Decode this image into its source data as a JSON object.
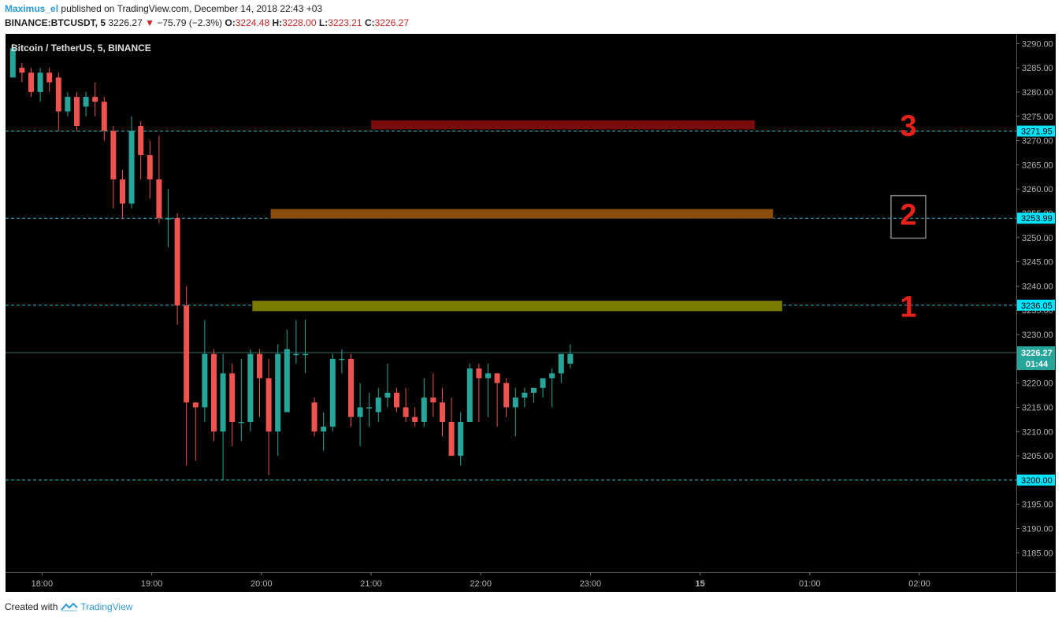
{
  "header": {
    "author": "Maximus_el",
    "published": "published on TradingView.com, December 14, 2018 22:43 +03",
    "symbol": "BINANCE:BTCUSDT, 5",
    "last": "3226.27",
    "change": "−75.79 (−2.3%)",
    "o_label": "O:",
    "o_value": "3224.48",
    "h_label": "H:",
    "h_value": "3228.00",
    "l_label": "L:",
    "l_value": "3223.21",
    "c_label": "C:",
    "c_value": "3226.27"
  },
  "footer": {
    "created_with": "Created with",
    "brand": "TradingView"
  },
  "colors": {
    "background": "#000000",
    "up": "#26a69a",
    "down": "#ef5350",
    "dashed_line": "#2ab7ca",
    "zone1": "#7a7a00",
    "zone2": "#8a4d0e",
    "zone3": "#7a0b0b",
    "price_label_bg": "#00e5ff",
    "last_price_bg": "#26a69a",
    "zone_number": "#e8211b"
  },
  "chart_data": {
    "type": "candlestick",
    "title": "Bitcoin / TetherUS, 5, BINANCE",
    "ylim": [
      3181,
      3292
    ],
    "x_time_start": "17:40",
    "x_ticks": [
      {
        "time": "18:00",
        "label": "18:00"
      },
      {
        "time": "19:00",
        "label": "19:00"
      },
      {
        "time": "20:00",
        "label": "20:00"
      },
      {
        "time": "21:00",
        "label": "21:00"
      },
      {
        "time": "22:00",
        "label": "22:00"
      },
      {
        "time": "23:00",
        "label": "23:00"
      },
      {
        "time": "24:00",
        "label": "15"
      },
      {
        "time": "25:00",
        "label": "01:00"
      },
      {
        "time": "26:00",
        "label": "02:00"
      }
    ],
    "y_ticks": [
      3290,
      3285,
      3280,
      3275,
      3270,
      3265,
      3260,
      3255,
      3250,
      3245,
      3240,
      3235,
      3230,
      3225,
      3220,
      3215,
      3210,
      3205,
      3200,
      3195,
      3190,
      3185
    ],
    "candles": [
      [
        3283,
        3289,
        3283,
        3290
      ],
      [
        3285,
        3284,
        3282,
        3286
      ],
      [
        3284,
        3280,
        3279,
        3285
      ],
      [
        3280,
        3284,
        3278,
        3285
      ],
      [
        3284,
        3282,
        3280,
        3285
      ],
      [
        3283,
        3276,
        3272,
        3284
      ],
      [
        3276,
        3279,
        3275,
        3280
      ],
      [
        3279,
        3273,
        3272,
        3280
      ],
      [
        3277,
        3279,
        3275,
        3280
      ],
      [
        3279,
        3278,
        3275,
        3282
      ],
      [
        3278,
        3272,
        3270,
        3279
      ],
      [
        3272,
        3262,
        3256,
        3273
      ],
      [
        3262,
        3257,
        3254,
        3264
      ],
      [
        3257,
        3272,
        3256,
        3275
      ],
      [
        3273,
        3267,
        3262,
        3274
      ],
      [
        3267,
        3262,
        3258,
        3270
      ],
      [
        3262,
        3254,
        3253,
        3271
      ],
      [
        3254,
        3254,
        3248,
        3260
      ],
      [
        3254,
        3236,
        3232,
        3255
      ],
      [
        3236,
        3216,
        3203,
        3240
      ],
      [
        3216,
        3215,
        3204,
        3216
      ],
      [
        3215,
        3226,
        3212,
        3233
      ],
      [
        3226,
        3210,
        3208,
        3227
      ],
      [
        3210,
        3222,
        3200,
        3226
      ],
      [
        3222,
        3212,
        3207,
        3224
      ],
      [
        3212,
        3212,
        3208,
        3225
      ],
      [
        3212,
        3226,
        3210,
        3227
      ],
      [
        3226,
        3221,
        3213,
        3227
      ],
      [
        3221,
        3210,
        3201,
        3225
      ],
      [
        3210,
        3226,
        3205,
        3228
      ],
      [
        3214,
        3227,
        3215,
        3231
      ],
      [
        3226,
        3226,
        3224,
        3233
      ],
      [
        3226,
        3226,
        3222,
        3233
      ],
      [
        3216,
        3210,
        3209,
        3217
      ],
      [
        3210,
        3211,
        3206,
        3214
      ],
      [
        3211,
        3225,
        3210,
        3226
      ],
      [
        3225,
        3225,
        3222,
        3227
      ],
      [
        3225,
        3213,
        3211,
        3226
      ],
      [
        3213,
        3215,
        3207,
        3220
      ],
      [
        3215,
        3215,
        3211,
        3218
      ],
      [
        3214,
        3217,
        3212,
        3219
      ],
      [
        3217,
        3218,
        3215,
        3224
      ],
      [
        3218,
        3215,
        3214,
        3219
      ],
      [
        3215,
        3213,
        3212,
        3219
      ],
      [
        3213,
        3212,
        3211,
        3215
      ],
      [
        3212,
        3217,
        3211,
        3221
      ],
      [
        3217,
        3216,
        3213,
        3222
      ],
      [
        3216,
        3212,
        3209,
        3219
      ],
      [
        3212,
        3205,
        3205,
        3217
      ],
      [
        3205,
        3212,
        3203,
        3214
      ],
      [
        3212,
        3223,
        3212,
        3224
      ],
      [
        3223,
        3221,
        3212,
        3224
      ],
      [
        3221,
        3222,
        3213,
        3224
      ],
      [
        3222,
        3220,
        3211,
        3222
      ],
      [
        3220,
        3215,
        3213,
        3221
      ],
      [
        3215,
        3217,
        3209,
        3219
      ],
      [
        3217,
        3218,
        3215,
        3219
      ],
      [
        3218,
        3219,
        3216,
        3219
      ],
      [
        3219,
        3221,
        3217,
        3221
      ],
      [
        3221,
        3222,
        3215,
        3223
      ],
      [
        3222,
        3226,
        3220,
        3226
      ],
      [
        3224,
        3226,
        3223,
        3228
      ]
    ],
    "zones": [
      {
        "label": "3",
        "low": 3272.3,
        "high": 3274.2,
        "x_start": "21:00",
        "x_end": "24:30",
        "color": "#7a0b0b"
      },
      {
        "label": "2",
        "low": 3253.9,
        "high": 3255.9,
        "x_start": "20:05",
        "x_end": "24:40",
        "color": "#8a4d0e"
      },
      {
        "label": "1",
        "low": 3234.8,
        "high": 3237.0,
        "x_start": "19:55",
        "x_end": "24:45",
        "color": "#7a7a00"
      }
    ],
    "dashed_lines": [
      3271.95,
      3253.99,
      3236.05,
      3200.0
    ],
    "price_labels": [
      "3271.95",
      "3253.99",
      "3236.05",
      "3200.00"
    ],
    "last_price": {
      "value": 3226.27,
      "label": "3226.27",
      "countdown": "01:44"
    }
  }
}
